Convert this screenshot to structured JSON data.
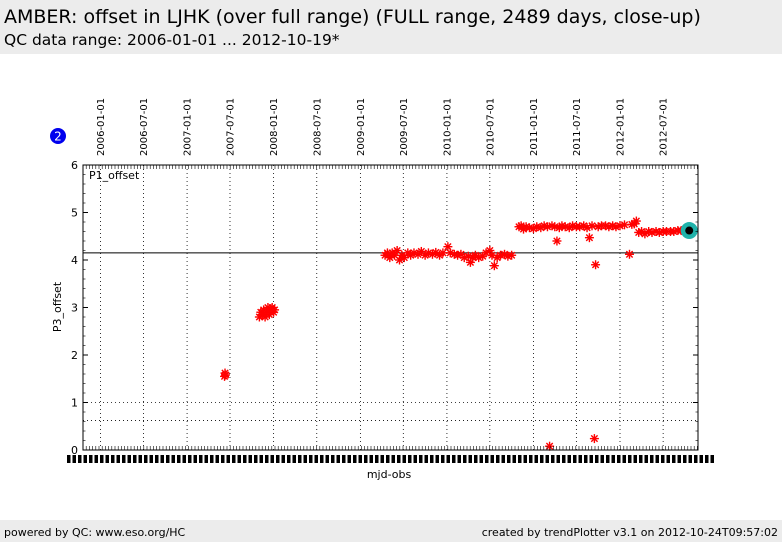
{
  "header": {
    "title": "AMBER: offset in LJHK (over full range) (FULL range, 2489 days, close-up)",
    "subtitle": "QC data range: 2006-01-01 ... 2012-10-19*"
  },
  "footer": {
    "left": "powered by QC: www.eso.org/HC",
    "right": "created by trendPlotter v3.1 on 2012-10-24T09:57:02"
  },
  "colors": {
    "data": "#ff0000",
    "latest_ring": "#20b2aa",
    "badge": "#0000ee",
    "background": "#ffffff",
    "band": "#ececec"
  },
  "chart_data": {
    "type": "scatter",
    "panel_badge": "2",
    "panel_label": "P1_offset",
    "xlabel": "mjd-obs",
    "ylabel": "P3_offset",
    "ylim": [
      0,
      6
    ],
    "yticks": [
      0,
      1,
      2,
      3,
      4,
      5,
      6
    ],
    "xlim": [
      "2005-10-19",
      "2012-11-25"
    ],
    "date_ticks": [
      "2006-01-01",
      "2006-07-01",
      "2007-01-01",
      "2007-07-01",
      "2008-01-01",
      "2008-07-01",
      "2009-01-01",
      "2009-07-01",
      "2010-01-01",
      "2010-07-01",
      "2011-01-01",
      "2011-07-01",
      "2012-01-01",
      "2012-07-01"
    ],
    "average_line": 4.15,
    "threshold_lines": [
      1.0,
      0.62
    ],
    "grid": true,
    "marker": "star",
    "latest_point": {
      "x": "2012-10-19",
      "y": 4.62
    },
    "points": [
      {
        "x": "2007-06-08",
        "y": 1.55
      },
      {
        "x": "2007-06-10",
        "y": 1.62
      },
      {
        "x": "2007-06-12",
        "y": 1.58
      },
      {
        "x": "2007-11-02",
        "y": 2.8
      },
      {
        "x": "2007-11-08",
        "y": 2.9
      },
      {
        "x": "2007-11-14",
        "y": 2.85
      },
      {
        "x": "2007-11-20",
        "y": 2.95
      },
      {
        "x": "2007-11-26",
        "y": 2.8
      },
      {
        "x": "2007-12-02",
        "y": 2.9
      },
      {
        "x": "2007-12-08",
        "y": 3.0
      },
      {
        "x": "2007-12-14",
        "y": 2.85
      },
      {
        "x": "2007-12-20",
        "y": 2.95
      },
      {
        "x": "2007-12-26",
        "y": 3.0
      },
      {
        "x": "2008-01-01",
        "y": 2.9
      },
      {
        "x": "2008-01-05",
        "y": 2.95
      },
      {
        "x": "2009-04-15",
        "y": 4.1
      },
      {
        "x": "2009-04-25",
        "y": 4.15
      },
      {
        "x": "2009-05-05",
        "y": 4.05
      },
      {
        "x": "2009-05-15",
        "y": 4.15
      },
      {
        "x": "2009-05-25",
        "y": 4.1
      },
      {
        "x": "2009-06-05",
        "y": 4.2
      },
      {
        "x": "2009-06-15",
        "y": 4.0
      },
      {
        "x": "2009-06-25",
        "y": 4.1
      },
      {
        "x": "2009-07-05",
        "y": 4.05
      },
      {
        "x": "2009-07-20",
        "y": 4.15
      },
      {
        "x": "2009-08-01",
        "y": 4.1
      },
      {
        "x": "2009-08-15",
        "y": 4.15
      },
      {
        "x": "2009-09-01",
        "y": 4.12
      },
      {
        "x": "2009-09-15",
        "y": 4.18
      },
      {
        "x": "2009-10-01",
        "y": 4.1
      },
      {
        "x": "2009-10-15",
        "y": 4.15
      },
      {
        "x": "2009-11-01",
        "y": 4.12
      },
      {
        "x": "2009-11-15",
        "y": 4.16
      },
      {
        "x": "2009-12-01",
        "y": 4.1
      },
      {
        "x": "2009-12-15",
        "y": 4.15
      },
      {
        "x": "2010-01-05",
        "y": 4.28
      },
      {
        "x": "2010-01-15",
        "y": 4.15
      },
      {
        "x": "2010-02-01",
        "y": 4.12
      },
      {
        "x": "2010-02-15",
        "y": 4.1
      },
      {
        "x": "2010-03-01",
        "y": 4.12
      },
      {
        "x": "2010-03-15",
        "y": 4.05
      },
      {
        "x": "2010-04-01",
        "y": 4.08
      },
      {
        "x": "2010-04-10",
        "y": 3.95
      },
      {
        "x": "2010-04-20",
        "y": 4.05
      },
      {
        "x": "2010-05-01",
        "y": 4.1
      },
      {
        "x": "2010-05-15",
        "y": 4.05
      },
      {
        "x": "2010-06-01",
        "y": 4.08
      },
      {
        "x": "2010-06-15",
        "y": 4.15
      },
      {
        "x": "2010-07-01",
        "y": 4.2
      },
      {
        "x": "2010-07-10",
        "y": 4.1
      },
      {
        "x": "2010-07-20",
        "y": 3.88
      },
      {
        "x": "2010-08-01",
        "y": 4.05
      },
      {
        "x": "2010-08-15",
        "y": 4.1
      },
      {
        "x": "2010-09-01",
        "y": 4.12
      },
      {
        "x": "2010-09-15",
        "y": 4.08
      },
      {
        "x": "2010-10-01",
        "y": 4.1
      },
      {
        "x": "2010-11-01",
        "y": 4.7
      },
      {
        "x": "2010-11-10",
        "y": 4.72
      },
      {
        "x": "2010-11-20",
        "y": 4.65
      },
      {
        "x": "2010-12-01",
        "y": 4.7
      },
      {
        "x": "2010-12-15",
        "y": 4.68
      },
      {
        "x": "2011-01-01",
        "y": 4.66
      },
      {
        "x": "2011-01-15",
        "y": 4.7
      },
      {
        "x": "2011-02-01",
        "y": 4.68
      },
      {
        "x": "2011-02-15",
        "y": 4.72
      },
      {
        "x": "2011-03-01",
        "y": 4.7
      },
      {
        "x": "2011-03-10",
        "y": 0.08
      },
      {
        "x": "2011-03-20",
        "y": 4.72
      },
      {
        "x": "2011-04-01",
        "y": 4.7
      },
      {
        "x": "2011-04-10",
        "y": 4.4
      },
      {
        "x": "2011-04-20",
        "y": 4.68
      },
      {
        "x": "2011-05-01",
        "y": 4.72
      },
      {
        "x": "2011-05-15",
        "y": 4.7
      },
      {
        "x": "2011-06-01",
        "y": 4.68
      },
      {
        "x": "2011-06-15",
        "y": 4.72
      },
      {
        "x": "2011-07-01",
        "y": 4.7
      },
      {
        "x": "2011-07-15",
        "y": 4.7
      },
      {
        "x": "2011-08-01",
        "y": 4.72
      },
      {
        "x": "2011-08-15",
        "y": 4.68
      },
      {
        "x": "2011-08-25",
        "y": 4.47
      },
      {
        "x": "2011-09-05",
        "y": 4.72
      },
      {
        "x": "2011-09-15",
        "y": 0.24
      },
      {
        "x": "2011-09-20",
        "y": 3.9
      },
      {
        "x": "2011-10-01",
        "y": 4.7
      },
      {
        "x": "2011-10-15",
        "y": 4.72
      },
      {
        "x": "2011-11-01",
        "y": 4.72
      },
      {
        "x": "2011-11-15",
        "y": 4.7
      },
      {
        "x": "2011-12-01",
        "y": 4.72
      },
      {
        "x": "2011-12-15",
        "y": 4.7
      },
      {
        "x": "2012-01-01",
        "y": 4.72
      },
      {
        "x": "2012-01-20",
        "y": 4.74
      },
      {
        "x": "2012-02-10",
        "y": 4.12
      },
      {
        "x": "2012-02-20",
        "y": 4.75
      },
      {
        "x": "2012-03-01",
        "y": 4.76
      },
      {
        "x": "2012-03-10",
        "y": 4.82
      },
      {
        "x": "2012-03-20",
        "y": 4.58
      },
      {
        "x": "2012-04-01",
        "y": 4.6
      },
      {
        "x": "2012-04-15",
        "y": 4.55
      },
      {
        "x": "2012-05-01",
        "y": 4.6
      },
      {
        "x": "2012-05-15",
        "y": 4.58
      },
      {
        "x": "2012-06-01",
        "y": 4.6
      },
      {
        "x": "2012-06-15",
        "y": 4.58
      },
      {
        "x": "2012-07-01",
        "y": 4.6
      },
      {
        "x": "2012-07-15",
        "y": 4.6
      },
      {
        "x": "2012-08-01",
        "y": 4.6
      },
      {
        "x": "2012-08-15",
        "y": 4.6
      },
      {
        "x": "2012-09-01",
        "y": 4.62
      },
      {
        "x": "2012-09-15",
        "y": 4.62
      },
      {
        "x": "2012-10-01",
        "y": 4.62
      }
    ]
  }
}
